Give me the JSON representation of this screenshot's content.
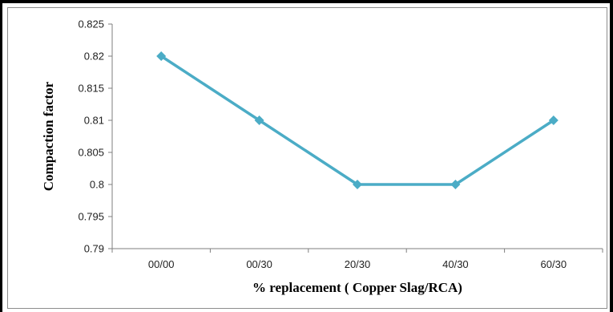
{
  "chart_data": {
    "type": "line",
    "categories": [
      "00/00",
      "00/30",
      "20/30",
      "40/30",
      "60/30"
    ],
    "series": [
      {
        "values": [
          0.82,
          0.81,
          0.8,
          0.8,
          0.81
        ]
      }
    ],
    "title": "",
    "xlabel": "% replacement ( Copper Slag/RCA)",
    "ylabel": "Compaction  factor",
    "ylim": [
      0.79,
      0.825
    ],
    "yticks": [
      "0.79",
      "0.795",
      "0.8",
      "0.805",
      "0.81",
      "0.815",
      "0.82",
      "0.825"
    ],
    "grid": false,
    "legend": "none",
    "colors": {
      "line": "#4bacc6",
      "axis": "#7f7f7f"
    }
  }
}
